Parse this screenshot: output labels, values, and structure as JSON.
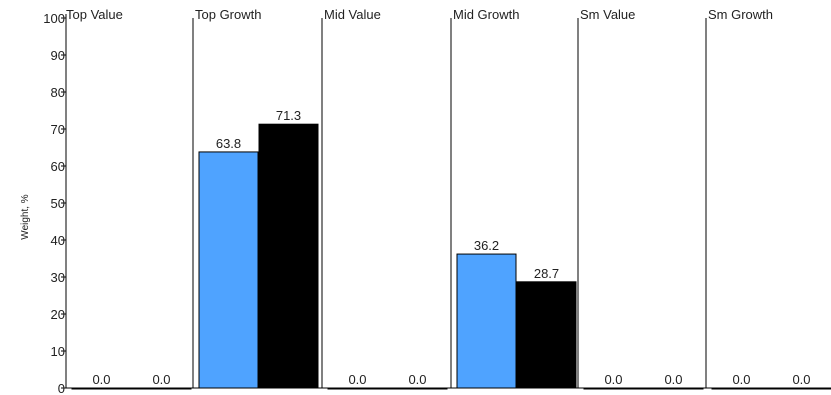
{
  "chart_data": {
    "type": "bar",
    "title": "",
    "ylabel": "Weight, %",
    "xlabel": "",
    "ylim": [
      0,
      100
    ],
    "yticks": [
      0,
      10,
      20,
      30,
      40,
      50,
      60,
      70,
      80,
      90,
      100
    ],
    "categories": [
      "Top Value",
      "Top Growth",
      "Mid Value",
      "Mid Growth",
      "Sm Value",
      "Sm Growth"
    ],
    "series": [
      {
        "color": "#4fa3ff",
        "values": [
          0.0,
          63.8,
          0.0,
          36.2,
          0.0,
          0.0
        ],
        "labels": [
          "0.0",
          "63.8",
          "0.0",
          "36.2",
          "0.0",
          "0.0"
        ]
      },
      {
        "color": "#000000",
        "values": [
          0.0,
          71.3,
          0.0,
          28.7,
          0.0,
          0.0
        ],
        "labels": [
          "0.0",
          "71.3",
          "0.0",
          "28.7",
          "0.0",
          "0.0"
        ]
      }
    ],
    "grid": false,
    "legend": "none"
  }
}
